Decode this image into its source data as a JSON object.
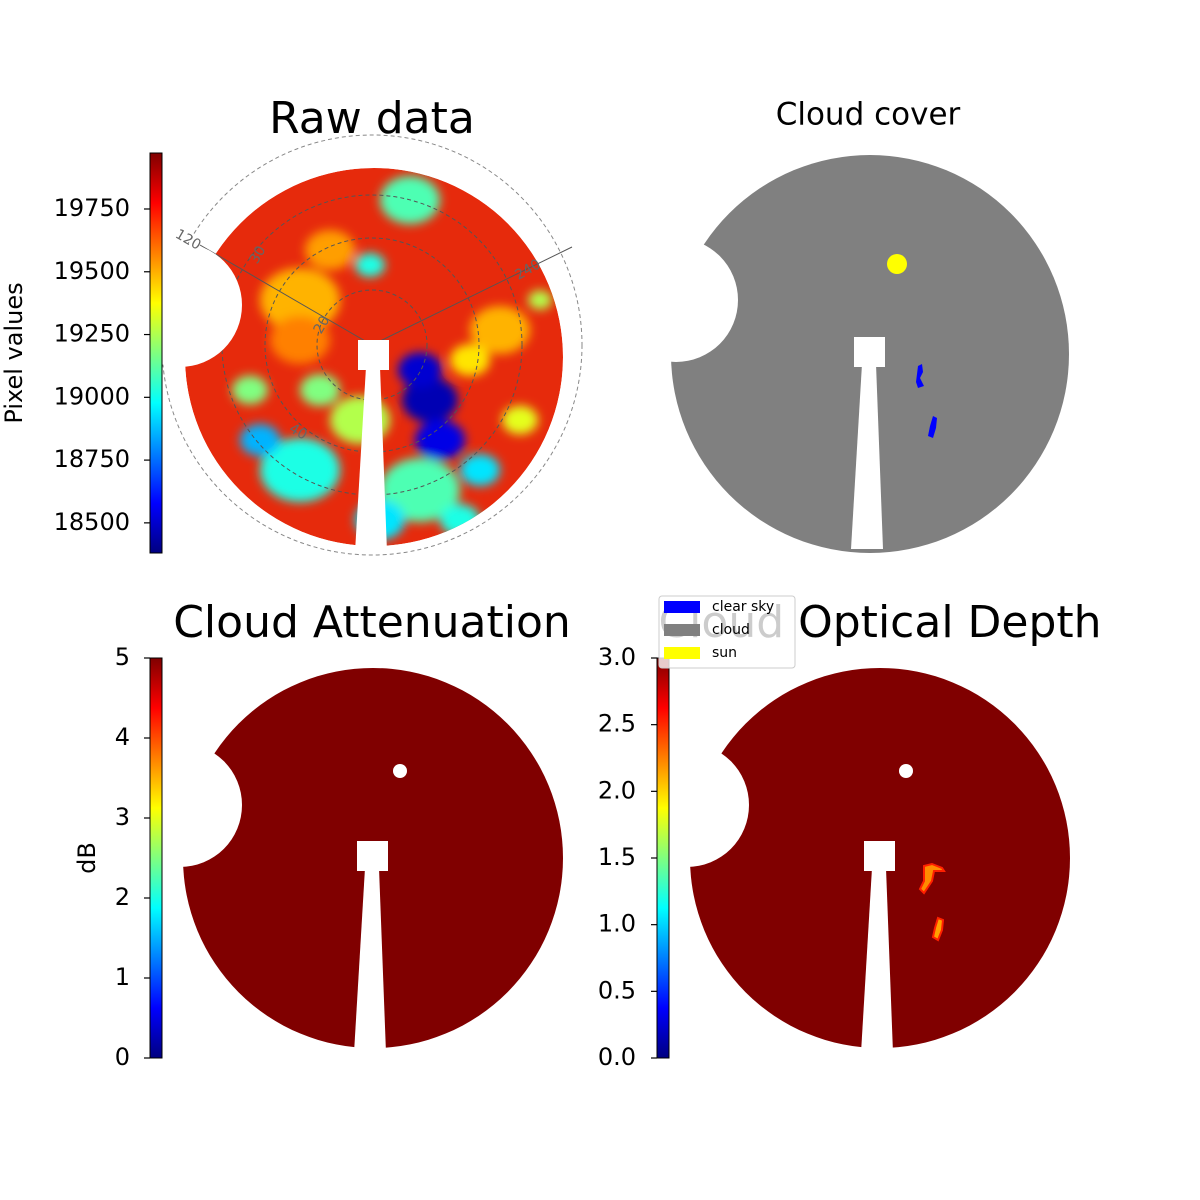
{
  "chart_data": [
    {
      "type": "image",
      "title": "Raw data",
      "colorbar_label": "Pixel values",
      "colormap": "jet",
      "clim": [
        18380,
        19973
      ],
      "cticks": [
        18500,
        18750,
        19000,
        19250,
        19500,
        19750
      ],
      "annotations": [
        "120",
        "30",
        "20",
        "40",
        "240"
      ]
    },
    {
      "type": "image",
      "title": "Cloud cover",
      "legend": [
        {
          "name": "clear sky",
          "color": "#0000ff"
        },
        {
          "name": "cloud",
          "color": "#808080"
        },
        {
          "name": "sun",
          "color": "#ffff00"
        }
      ]
    },
    {
      "type": "image",
      "title": "Cloud Attenuation",
      "colorbar_label": "dB",
      "colormap": "jet",
      "clim": [
        0,
        5
      ],
      "cticks": [
        0,
        1,
        2,
        3,
        4,
        5
      ]
    },
    {
      "type": "image",
      "title": "Cloud Optical Depth",
      "colormap": "jet",
      "clim": [
        0,
        3
      ],
      "cticks": [
        {
          "value": 0,
          "label": "0.0"
        },
        0.5,
        {
          "value": 1,
          "label": "1.0"
        },
        1.5,
        {
          "value": 2,
          "label": "2.0"
        },
        2.5,
        {
          "value": 3,
          "label": "3.0"
        }
      ]
    }
  ]
}
